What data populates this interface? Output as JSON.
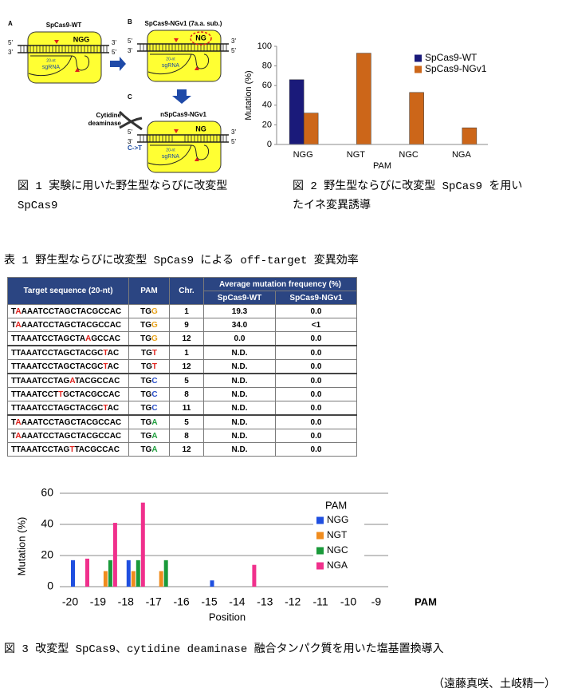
{
  "figure1": {
    "strand_5": "5'",
    "strand_3": "3'",
    "panels": [
      {
        "letter": "A",
        "title": "SpCas9-WT",
        "pam": "NGG",
        "spacer": "20-nt",
        "guide": "sgRNA"
      },
      {
        "letter": "B",
        "title": "SpCas9-NGv1 (7a.a. sub.)",
        "pam": "NG",
        "spacer": "20-nt",
        "guide": "sgRNA"
      },
      {
        "letter": "C",
        "title": "nSpCas9-NGv1",
        "pam": "NG",
        "spacer": "20-nt",
        "guide": "sgRNA",
        "enzyme": "Cytidine deaminase",
        "edit": "C->T"
      }
    ]
  },
  "captions": {
    "figure1": "図 1 実験に用いた野生型ならびに改変型 SpCas9",
    "figure2": "図 2 野生型ならびに改変型 SpCas9 を用いたイネ変異誘導",
    "table1": "表 1 野生型ならびに改変型 SpCas9 による off-target 変異効率",
    "figure3": "図 3 改変型 SpCas9、cytidine deaminase 融合タンパク質を用いた塩基置換導入"
  },
  "credit": "（遠藤真咲、土岐精一）",
  "table": {
    "header": [
      "Target sequence (20-nt)",
      "PAM",
      "Chr."
    ],
    "group_header": "Average mutation frequency (%)",
    "subheader": [
      "SpCas9-WT",
      "SpCas9-NGv1"
    ],
    "header_color": "#2b4582",
    "mismatch_color": "#e0201b",
    "pam_colors": {
      "G": "#e8a31c",
      "T": "#e0201b",
      "C": "#2b50c8",
      "A": "#22a040"
    },
    "rows": [
      {
        "sequence": "TAAAATCCTAGCTACGCCAC",
        "mismatch": 1,
        "pam": "TGG",
        "chr": 1,
        "wt": "19.3",
        "ngv1": "0.0"
      },
      {
        "sequence": "TAAAATCCTAGCTACGCCAC",
        "mismatch": 1,
        "pam": "TGG",
        "chr": 9,
        "wt": "34.0",
        "ngv1": "<1"
      },
      {
        "sequence": "TTAAATCCTAGCTAAGCCAC",
        "mismatch": 14,
        "pam": "TGG",
        "chr": 12,
        "wt": "0.0",
        "ngv1": "0.0"
      },
      {
        "sequence": "TTAAATCCTAGCTACGCTAC",
        "mismatch": 17,
        "pam": "TGT",
        "chr": 1,
        "wt": "N.D.",
        "ngv1": "0.0"
      },
      {
        "sequence": "TTAAATCCTAGCTACGCTAC",
        "mismatch": 17,
        "pam": "TGT",
        "chr": 12,
        "wt": "N.D.",
        "ngv1": "0.0"
      },
      {
        "sequence": "TTAAATCCTAGATACGCCAC",
        "mismatch": 11,
        "pam": "TGC",
        "chr": 5,
        "wt": "N.D.",
        "ngv1": "0.0"
      },
      {
        "sequence": "TTAAATCCTTGCTACGCCAC",
        "mismatch": 9,
        "pam": "TGC",
        "chr": 8,
        "wt": "N.D.",
        "ngv1": "0.0"
      },
      {
        "sequence": "TTAAATCCTAGCTACGCTAC",
        "mismatch": 17,
        "pam": "TGC",
        "chr": 11,
        "wt": "N.D.",
        "ngv1": "0.0"
      },
      {
        "sequence": "TAAAATCCTAGCTACGCCAC",
        "mismatch": 1,
        "pam": "TGA",
        "chr": 5,
        "wt": "N.D.",
        "ngv1": "0.0"
      },
      {
        "sequence": "TAAAATCCTAGCTACGCCAC",
        "mismatch": 1,
        "pam": "TGA",
        "chr": 8,
        "wt": "N.D.",
        "ngv1": "0.0"
      },
      {
        "sequence": "TTAAATCCTAGTTACGCCAC",
        "mismatch": 11,
        "pam": "TGA",
        "chr": 12,
        "wt": "N.D.",
        "ngv1": "0.0"
      }
    ]
  },
  "chart_data": [
    {
      "type": "bar",
      "y_label": "Mutation (%)",
      "x_label": "PAM",
      "categories": [
        "NGG",
        "NGT",
        "NGC",
        "NGA"
      ],
      "series": [
        {
          "name": "SpCas9-WT",
          "color": "#1a1a7a",
          "values": [
            66,
            0,
            0,
            0
          ]
        },
        {
          "name": "SpCas9-NGv1",
          "color": "#cc6619",
          "values": [
            32,
            93,
            53,
            17
          ]
        }
      ],
      "ylim": [
        0,
        100
      ],
      "yticks": [
        0,
        20,
        40,
        60,
        80,
        100
      ],
      "grid": false,
      "legend": "upper right"
    },
    {
      "type": "bar",
      "y_label": "Mutation (%)",
      "x_label": "Position",
      "x_note": "PAM",
      "legend_title": "PAM",
      "categories": [
        "-20",
        "-19",
        "-18",
        "-17",
        "-16",
        "-15",
        "-14",
        "-13",
        "-12",
        "-11",
        "-10",
        "-9"
      ],
      "series": [
        {
          "name": "NGG",
          "color": "#1f4fe0",
          "values": [
            17,
            0,
            17,
            0,
            0,
            4,
            0,
            0,
            0,
            0,
            0,
            0
          ]
        },
        {
          "name": "NGT",
          "color": "#f08c1e",
          "values": [
            0,
            10,
            10,
            10,
            0,
            0,
            0,
            0,
            0,
            0,
            0,
            0
          ]
        },
        {
          "name": "NGC",
          "color": "#1a9a3a",
          "values": [
            0,
            17,
            17,
            17,
            0,
            0,
            0,
            0,
            0,
            0,
            0,
            0
          ]
        },
        {
          "name": "NGA",
          "color": "#f0308c",
          "values": [
            18,
            41,
            54,
            0,
            0,
            0,
            14,
            0,
            0,
            0,
            0,
            0
          ]
        }
      ],
      "ylim": [
        0,
        60
      ],
      "yticks": [
        0,
        20,
        40,
        60
      ],
      "grid": true,
      "legend": "right"
    }
  ]
}
